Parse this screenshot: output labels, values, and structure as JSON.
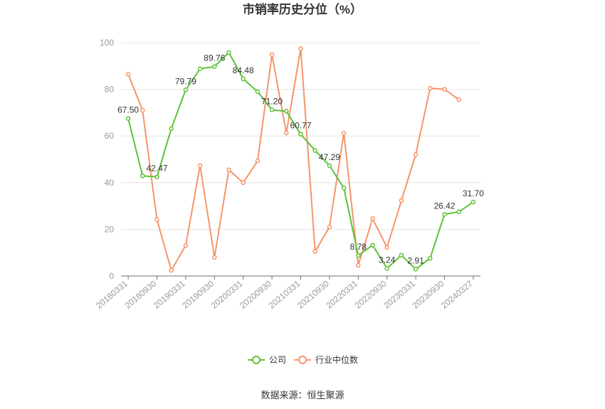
{
  "chart_data": {
    "type": "line",
    "title": "市销率历史分位（%）",
    "x": [
      "20180331",
      "20180630",
      "20180930",
      "20181231",
      "20190331",
      "20190630",
      "20190930",
      "20191231",
      "20200331",
      "20200630",
      "20200930",
      "20201231",
      "20210331",
      "20210630",
      "20210930",
      "20211231",
      "20220331",
      "20220630",
      "20220930",
      "20221231",
      "20230331",
      "20230630",
      "20230930",
      "20231231",
      "20240327"
    ],
    "x_tick_labels": [
      "20180331",
      "20180930",
      "20190331",
      "20190930",
      "20200331",
      "20200930",
      "20210331",
      "20210930",
      "20220331",
      "20220930",
      "20230331",
      "20230930",
      "20240327"
    ],
    "y_ticks": [
      0,
      20,
      40,
      60,
      80,
      100
    ],
    "ylim": [
      0,
      100
    ],
    "grid": true,
    "legend_position": "bottom",
    "series": [
      {
        "name": "公司",
        "color": "#5ec236",
        "values": [
          67.5,
          42.9,
          42.47,
          63.2,
          79.79,
          88.8,
          89.76,
          95.8,
          84.48,
          79.0,
          71.2,
          70.6,
          60.77,
          53.8,
          47.29,
          37.7,
          8.78,
          13.2,
          3.24,
          8.9,
          2.91,
          7.6,
          26.42,
          27.5,
          31.7
        ]
      },
      {
        "name": "行业中位数",
        "color": "#f4956a",
        "values": [
          86.5,
          71.0,
          24.2,
          2.4,
          13.1,
          47.3,
          8.0,
          45.5,
          40.0,
          49.3,
          94.8,
          61.3,
          97.5,
          10.5,
          21.0,
          61.2,
          4.6,
          24.6,
          12.2,
          32.3,
          52.0,
          80.5,
          80.0,
          75.6,
          null
        ]
      }
    ],
    "data_labels": [
      {
        "index": 0,
        "text": "67.50"
      },
      {
        "index": 2,
        "text": "42.47"
      },
      {
        "index": 4,
        "text": "79.79"
      },
      {
        "index": 6,
        "text": "89.76"
      },
      {
        "index": 8,
        "text": "84.48"
      },
      {
        "index": 10,
        "text": "71.20"
      },
      {
        "index": 12,
        "text": "60.77"
      },
      {
        "index": 14,
        "text": "47.29"
      },
      {
        "index": 16,
        "text": "8.78"
      },
      {
        "index": 18,
        "text": "3.24"
      },
      {
        "index": 20,
        "text": "2.91"
      },
      {
        "index": 22,
        "text": "26.42"
      },
      {
        "index": 24,
        "text": "31.70"
      }
    ]
  },
  "footer": {
    "source": "数据来源：恒生聚源"
  }
}
